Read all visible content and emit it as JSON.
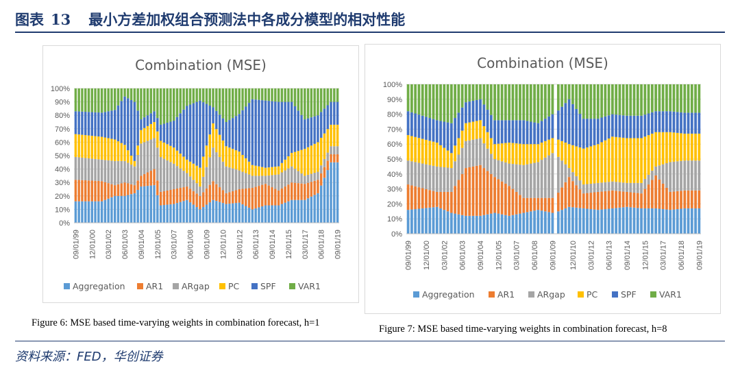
{
  "header": {
    "label": "图表",
    "number": "13",
    "title": "最小方差加权组合预测法中各成分模型的相对性能"
  },
  "source": "资料来源：FED，华创证券",
  "colors": {
    "Aggregation": "#5b9bd5",
    "AR1": "#ed7d31",
    "ARgap": "#a5a5a5",
    "PC": "#ffc000",
    "SPF": "#4472c4",
    "VAR1": "#70ad47"
  },
  "chart_data": [
    {
      "type": "stacked-bar",
      "title": "Combination (MSE)",
      "caption": "Figure 6: MSE based time-varying weights in combination forecast, h=1",
      "y_ticks": [
        "0%",
        "10%",
        "20%",
        "30%",
        "40%",
        "50%",
        "60%",
        "70%",
        "80%",
        "90%",
        "100%"
      ],
      "ylim": [
        0,
        100
      ],
      "x_ticks": [
        "09/01/99",
        "12/01/00",
        "03/01/02",
        "06/01/03",
        "09/01/04",
        "12/01/05",
        "03/01/07",
        "06/01/08",
        "09/01/09",
        "12/01/10",
        "03/01/12",
        "06/01/13",
        "09/01/14",
        "12/01/15",
        "03/01/17",
        "06/01/18",
        "09/01/19"
      ],
      "n_bars": 81,
      "legend": [
        "Aggregation",
        "AR1",
        "ARgap",
        "PC",
        "SPF",
        "VAR1"
      ],
      "series": [
        {
          "name": "Aggregation",
          "keyframes": [
            [
              0,
              16
            ],
            [
              8,
              16
            ],
            [
              12,
              20
            ],
            [
              15,
              20
            ],
            [
              18,
              22
            ],
            [
              20,
              27
            ],
            [
              24,
              28
            ],
            [
              26,
              13
            ],
            [
              30,
              14
            ],
            [
              34,
              17
            ],
            [
              38,
              10
            ],
            [
              42,
              17
            ],
            [
              46,
              14
            ],
            [
              50,
              15
            ],
            [
              54,
              10
            ],
            [
              58,
              13
            ],
            [
              62,
              13
            ],
            [
              66,
              17
            ],
            [
              70,
              17
            ],
            [
              74,
              22
            ],
            [
              78,
              45
            ],
            [
              80,
              45
            ]
          ]
        },
        {
          "name": "AR1",
          "keyframes": [
            [
              0,
              16
            ],
            [
              8,
              15
            ],
            [
              12,
              8
            ],
            [
              15,
              10
            ],
            [
              18,
              6
            ],
            [
              20,
              8
            ],
            [
              24,
              12
            ],
            [
              26,
              10
            ],
            [
              30,
              11
            ],
            [
              34,
              10
            ],
            [
              38,
              10
            ],
            [
              42,
              14
            ],
            [
              46,
              8
            ],
            [
              50,
              10
            ],
            [
              54,
              16
            ],
            [
              58,
              16
            ],
            [
              62,
              11
            ],
            [
              66,
              13
            ],
            [
              70,
              12
            ],
            [
              74,
              10
            ],
            [
              78,
              6
            ],
            [
              80,
              6
            ]
          ]
        },
        {
          "name": "ARgap",
          "keyframes": [
            [
              0,
              17
            ],
            [
              8,
              16
            ],
            [
              12,
              18
            ],
            [
              15,
              16
            ],
            [
              18,
              14
            ],
            [
              20,
              24
            ],
            [
              24,
              23
            ],
            [
              26,
              26
            ],
            [
              30,
              19
            ],
            [
              34,
              10
            ],
            [
              38,
              7
            ],
            [
              42,
              25
            ],
            [
              46,
              20
            ],
            [
              50,
              14
            ],
            [
              54,
              9
            ],
            [
              58,
              6
            ],
            [
              62,
              12
            ],
            [
              66,
              12
            ],
            [
              70,
              6
            ],
            [
              74,
              6
            ],
            [
              78,
              6
            ],
            [
              80,
              6
            ]
          ]
        },
        {
          "name": "PC",
          "keyframes": [
            [
              0,
              17
            ],
            [
              8,
              17
            ],
            [
              12,
              16
            ],
            [
              15,
              12
            ],
            [
              18,
              4
            ],
            [
              20,
              10
            ],
            [
              24,
              12
            ],
            [
              26,
              12
            ],
            [
              30,
              12
            ],
            [
              34,
              10
            ],
            [
              38,
              14
            ],
            [
              42,
              18
            ],
            [
              46,
              15
            ],
            [
              50,
              14
            ],
            [
              54,
              8
            ],
            [
              58,
              6
            ],
            [
              62,
              6
            ],
            [
              66,
              10
            ],
            [
              70,
              20
            ],
            [
              74,
              22
            ],
            [
              78,
              16
            ],
            [
              80,
              16
            ]
          ]
        },
        {
          "name": "SPF",
          "keyframes": [
            [
              0,
              17
            ],
            [
              8,
              18
            ],
            [
              12,
              22
            ],
            [
              15,
              36
            ],
            [
              18,
              44
            ],
            [
              20,
              8
            ],
            [
              24,
              8
            ],
            [
              26,
              12
            ],
            [
              30,
              20
            ],
            [
              34,
              40
            ],
            [
              38,
              50
            ],
            [
              42,
              12
            ],
            [
              46,
              18
            ],
            [
              50,
              28
            ],
            [
              54,
              49
            ],
            [
              58,
              50
            ],
            [
              62,
              48
            ],
            [
              66,
              38
            ],
            [
              70,
              22
            ],
            [
              74,
              20
            ],
            [
              78,
              17
            ],
            [
              80,
              17
            ]
          ]
        },
        {
          "name": "VAR1",
          "keyframes": [
            [
              0,
              17
            ],
            [
              8,
              18
            ],
            [
              12,
              16
            ],
            [
              15,
              6
            ],
            [
              18,
              10
            ],
            [
              20,
              23
            ],
            [
              24,
              17
            ],
            [
              26,
              27
            ],
            [
              30,
              24
            ],
            [
              34,
              13
            ],
            [
              38,
              9
            ],
            [
              42,
              14
            ],
            [
              46,
              25
            ],
            [
              50,
              19
            ],
            [
              54,
              8
            ],
            [
              58,
              9
            ],
            [
              62,
              10
            ],
            [
              66,
              10
            ],
            [
              70,
              23
            ],
            [
              74,
              20
            ],
            [
              78,
              10
            ],
            [
              80,
              10
            ]
          ]
        }
      ]
    },
    {
      "type": "stacked-bar",
      "title": "Combination (MSE)",
      "caption": "Figure 7: MSE based time-varying weights in combination forecast, h=8",
      "y_ticks": [
        "0%",
        "10%",
        "20%",
        "30%",
        "40%",
        "50%",
        "60%",
        "70%",
        "80%",
        "90%",
        "100%"
      ],
      "ylim": [
        0,
        100
      ],
      "x_ticks": [
        "09/01/99",
        "12/01/00",
        "03/01/02",
        "06/01/03",
        "09/01/04",
        "12/01/05",
        "03/01/07",
        "06/01/08",
        "09/01/09",
        "12/01/10",
        "03/01/12",
        "06/01/13",
        "09/01/14",
        "12/01/15",
        "03/01/17",
        "06/01/18",
        "09/01/19"
      ],
      "n_bars": 81,
      "gap_after": [
        40
      ],
      "legend": [
        "Aggregation",
        "AR1",
        "ARgap",
        "PC",
        "SPF",
        "VAR1"
      ],
      "series": [
        {
          "name": "Aggregation",
          "keyframes": [
            [
              0,
              16
            ],
            [
              8,
              18
            ],
            [
              12,
              14
            ],
            [
              16,
              12
            ],
            [
              20,
              12
            ],
            [
              24,
              14
            ],
            [
              28,
              12
            ],
            [
              32,
              14
            ],
            [
              36,
              16
            ],
            [
              40,
              14
            ],
            [
              44,
              18
            ],
            [
              48,
              17
            ],
            [
              52,
              16
            ],
            [
              56,
              17
            ],
            [
              60,
              18
            ],
            [
              64,
              17
            ],
            [
              68,
              17
            ],
            [
              72,
              16
            ],
            [
              76,
              17
            ],
            [
              80,
              17
            ]
          ]
        },
        {
          "name": "AR1",
          "keyframes": [
            [
              0,
              17
            ],
            [
              8,
              10
            ],
            [
              12,
              14
            ],
            [
              16,
              32
            ],
            [
              20,
              34
            ],
            [
              24,
              24
            ],
            [
              28,
              20
            ],
            [
              32,
              10
            ],
            [
              36,
              8
            ],
            [
              40,
              10
            ],
            [
              44,
              20
            ],
            [
              48,
              10
            ],
            [
              52,
              12
            ],
            [
              56,
              12
            ],
            [
              60,
              10
            ],
            [
              64,
              10
            ],
            [
              68,
              22
            ],
            [
              72,
              12
            ],
            [
              76,
              12
            ],
            [
              80,
              12
            ]
          ]
        },
        {
          "name": "ARgap",
          "keyframes": [
            [
              0,
              16
            ],
            [
              8,
              17
            ],
            [
              12,
              16
            ],
            [
              16,
              18
            ],
            [
              20,
              18
            ],
            [
              24,
              12
            ],
            [
              28,
              15
            ],
            [
              32,
              22
            ],
            [
              36,
              24
            ],
            [
              40,
              30
            ],
            [
              44,
              6
            ],
            [
              48,
              6
            ],
            [
              52,
              6
            ],
            [
              56,
              6
            ],
            [
              60,
              6
            ],
            [
              64,
              7
            ],
            [
              68,
              6
            ],
            [
              72,
              20
            ],
            [
              76,
              20
            ],
            [
              80,
              20
            ]
          ]
        },
        {
          "name": "PC",
          "keyframes": [
            [
              0,
              17
            ],
            [
              8,
              16
            ],
            [
              12,
              10
            ],
            [
              16,
              12
            ],
            [
              20,
              12
            ],
            [
              24,
              10
            ],
            [
              28,
              14
            ],
            [
              32,
              14
            ],
            [
              36,
              12
            ],
            [
              40,
              10
            ],
            [
              44,
              16
            ],
            [
              48,
              24
            ],
            [
              52,
              26
            ],
            [
              56,
              30
            ],
            [
              60,
              30
            ],
            [
              64,
              30
            ],
            [
              68,
              23
            ],
            [
              72,
              20
            ],
            [
              76,
              18
            ],
            [
              80,
              18
            ]
          ]
        },
        {
          "name": "SPF",
          "keyframes": [
            [
              0,
              16
            ],
            [
              8,
              15
            ],
            [
              12,
              20
            ],
            [
              16,
              14
            ],
            [
              20,
              14
            ],
            [
              24,
              16
            ],
            [
              28,
              15
            ],
            [
              32,
              16
            ],
            [
              36,
              14
            ],
            [
              40,
              16
            ],
            [
              44,
              30
            ],
            [
              48,
              20
            ],
            [
              52,
              17
            ],
            [
              56,
              15
            ],
            [
              60,
              15
            ],
            [
              64,
              15
            ],
            [
              68,
              14
            ],
            [
              72,
              14
            ],
            [
              76,
              14
            ],
            [
              80,
              14
            ]
          ]
        },
        {
          "name": "VAR1",
          "keyframes": [
            [
              0,
              18
            ],
            [
              8,
              24
            ],
            [
              12,
              26
            ],
            [
              16,
              12
            ],
            [
              20,
              10
            ],
            [
              24,
              24
            ],
            [
              28,
              24
            ],
            [
              32,
              24
            ],
            [
              36,
              26
            ],
            [
              40,
              20
            ],
            [
              44,
              10
            ],
            [
              48,
              23
            ],
            [
              52,
              23
            ],
            [
              56,
              20
            ],
            [
              60,
              21
            ],
            [
              64,
              21
            ],
            [
              68,
              18
            ],
            [
              72,
              18
            ],
            [
              76,
              19
            ],
            [
              80,
              19
            ]
          ]
        }
      ]
    }
  ]
}
